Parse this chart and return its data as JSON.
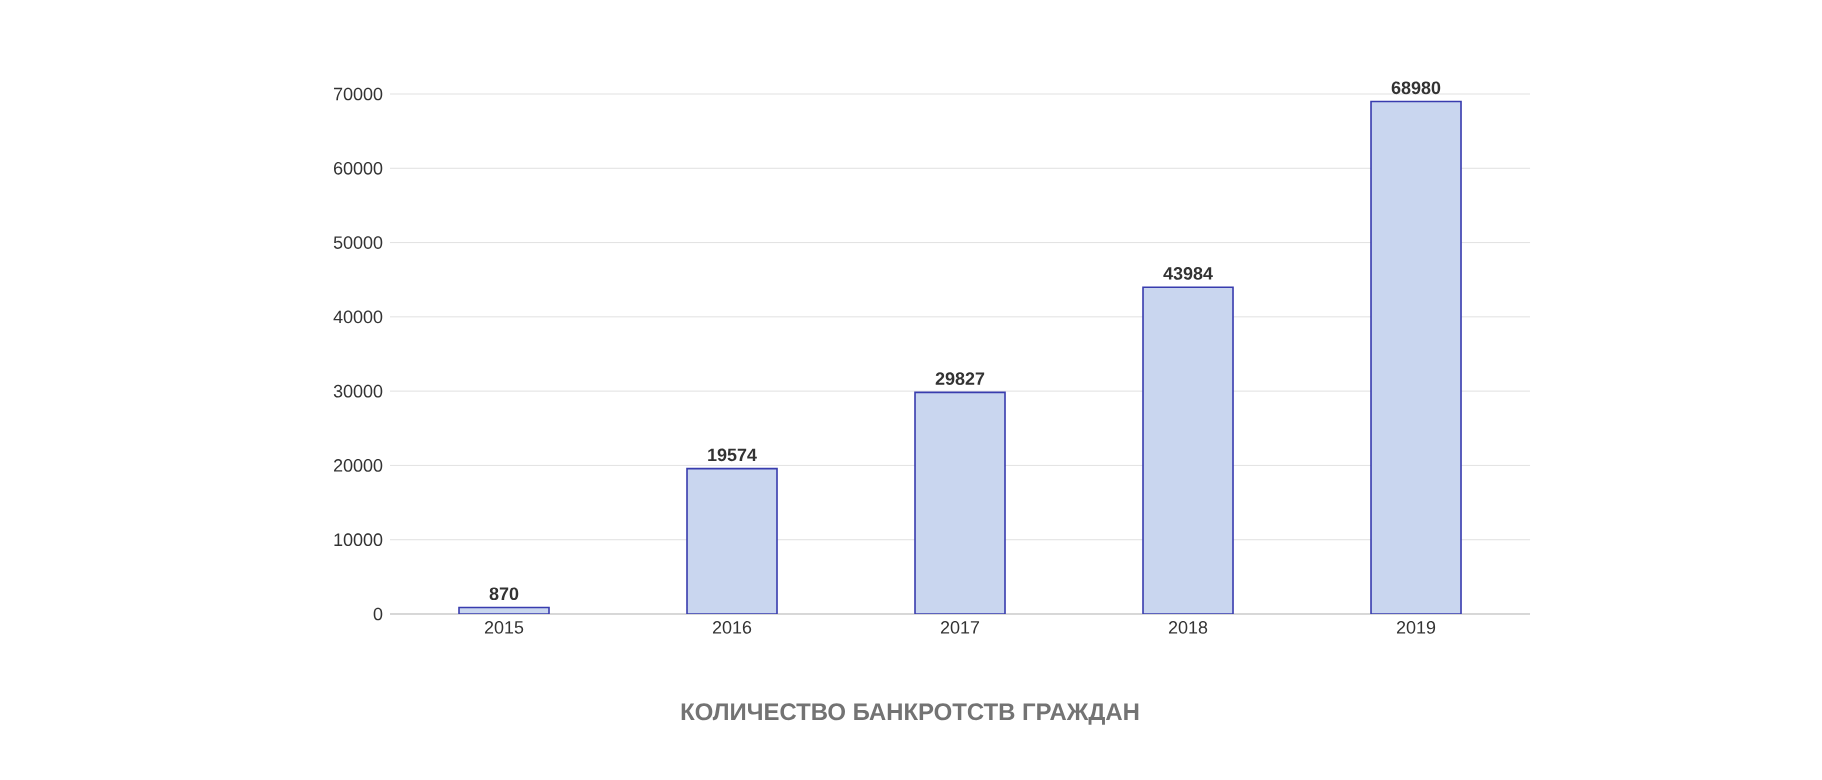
{
  "chart_data": {
    "type": "bar",
    "title": "КОЛИЧЕСТВО БАНКРОТСТВ ГРАЖДАН",
    "categories": [
      "2015",
      "2016",
      "2017",
      "2018",
      "2019"
    ],
    "values": [
      870,
      19574,
      29827,
      43984,
      68980
    ],
    "color": "#c9d6ef",
    "ylim": [
      0,
      70000
    ],
    "yticks": [
      0,
      10000,
      20000,
      30000,
      40000,
      50000,
      60000,
      70000
    ],
    "grid": "y",
    "data_labels": true
  }
}
